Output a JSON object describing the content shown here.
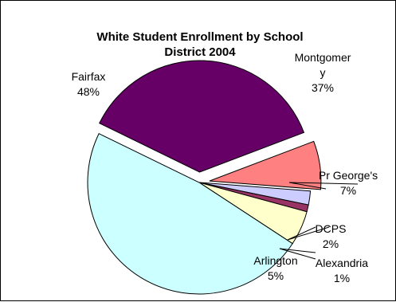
{
  "chart_data": {
    "type": "pie",
    "title": [
      "White Student Enrollment by School",
      "District 2004"
    ],
    "slices": [
      {
        "name": "Montgomery",
        "label_lines": [
          "Montgomer",
          "y"
        ],
        "percent_label": "37%",
        "value": 37,
        "color": "#660066"
      },
      {
        "name": "Pr George's",
        "label_lines": [
          "Pr George's"
        ],
        "percent_label": "7%",
        "value": 7,
        "color": "#FF8080"
      },
      {
        "name": "DCPS",
        "label_lines": [
          "DCPS"
        ],
        "percent_label": "2%",
        "value": 2,
        "color": "#CCCCFF"
      },
      {
        "name": "Alexandria",
        "label_lines": [
          "Alexandria"
        ],
        "percent_label": "1%",
        "value": 1,
        "color": "#993366"
      },
      {
        "name": "Arlington",
        "label_lines": [
          "Arlington"
        ],
        "percent_label": "5%",
        "value": 5,
        "color": "#FFFFCC"
      },
      {
        "name": "Fairfax",
        "label_lines": [
          "Fairfax"
        ],
        "percent_label": "48%",
        "value": 48,
        "color": "#CCFFFF"
      }
    ],
    "exploded": [
      "Montgomery",
      "Pr George's"
    ]
  }
}
